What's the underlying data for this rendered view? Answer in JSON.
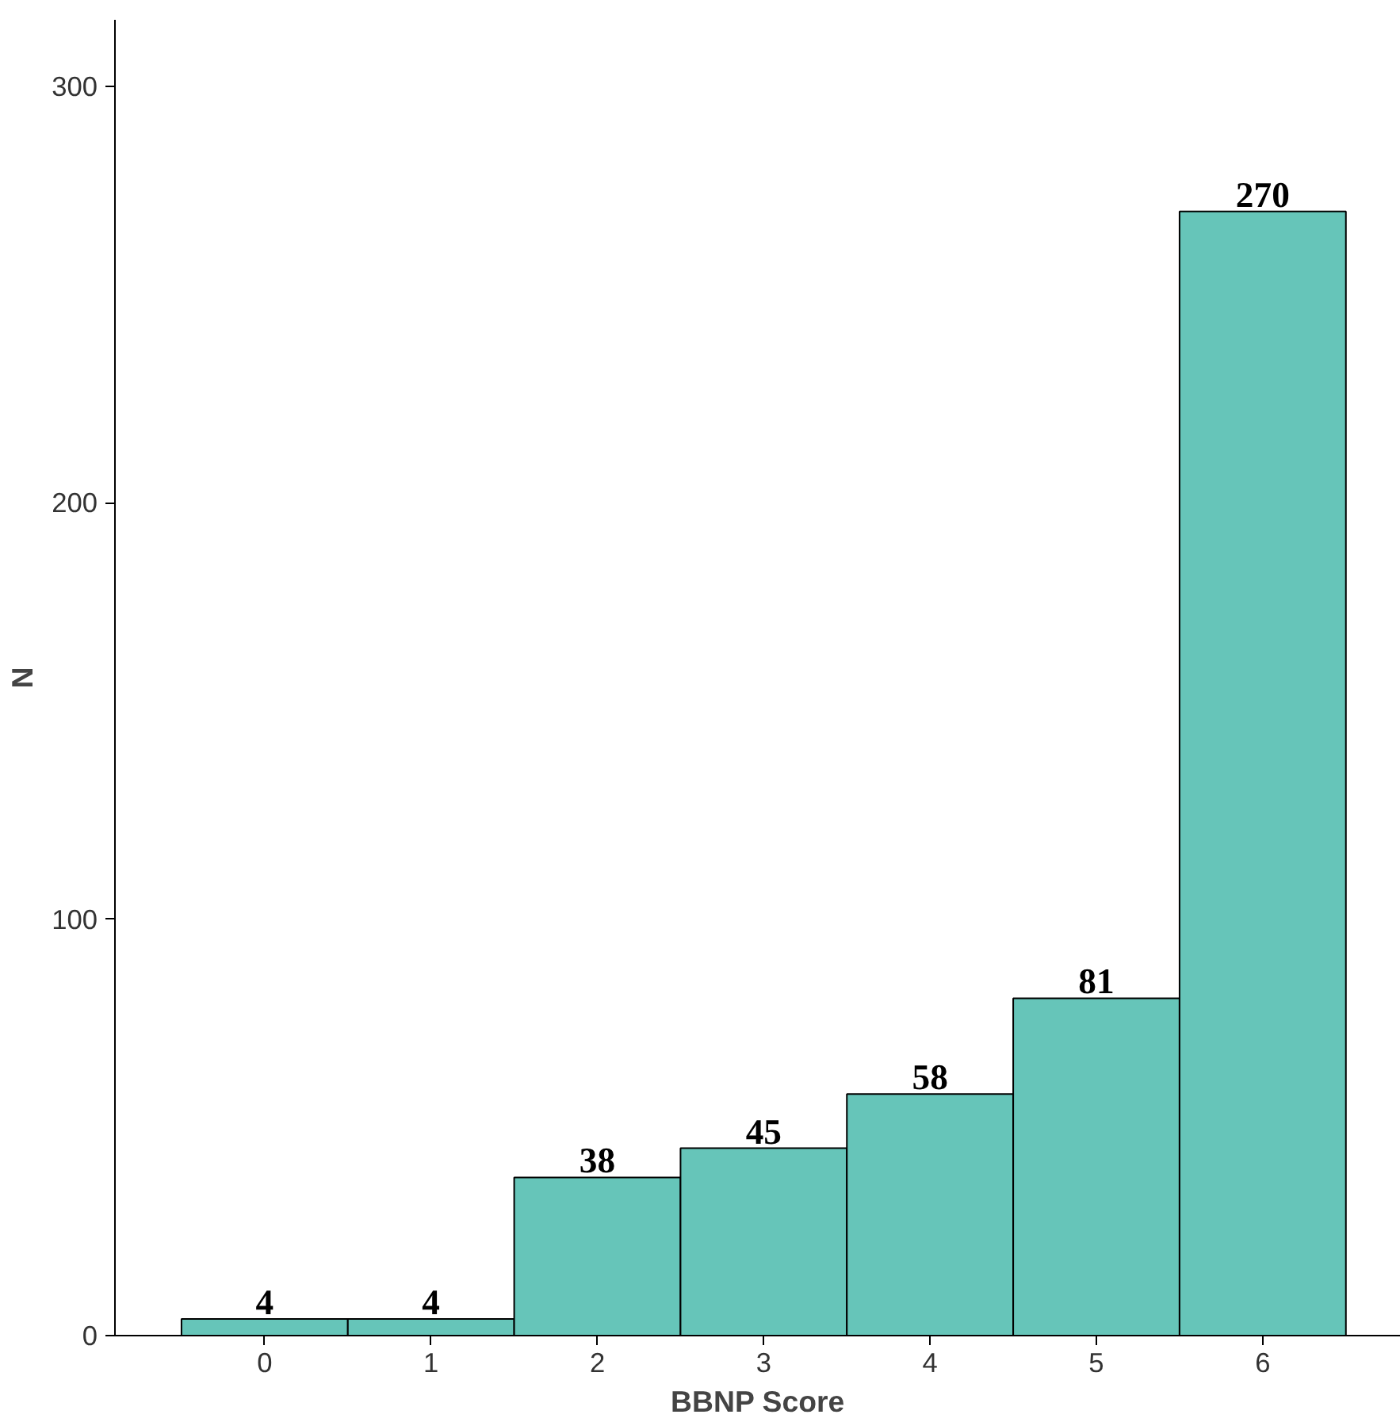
{
  "chart_data": {
    "type": "bar",
    "xlabel": "BBNP Score",
    "ylabel": "N",
    "categories": [
      "0",
      "1",
      "2",
      "3",
      "4",
      "5",
      "6"
    ],
    "values": [
      4,
      4,
      38,
      45,
      58,
      81,
      270
    ],
    "color": "#66c5b9",
    "ylim": [
      0,
      316
    ],
    "yticks": [
      0,
      100,
      200,
      300
    ],
    "grid": false,
    "data_labels": true
  }
}
